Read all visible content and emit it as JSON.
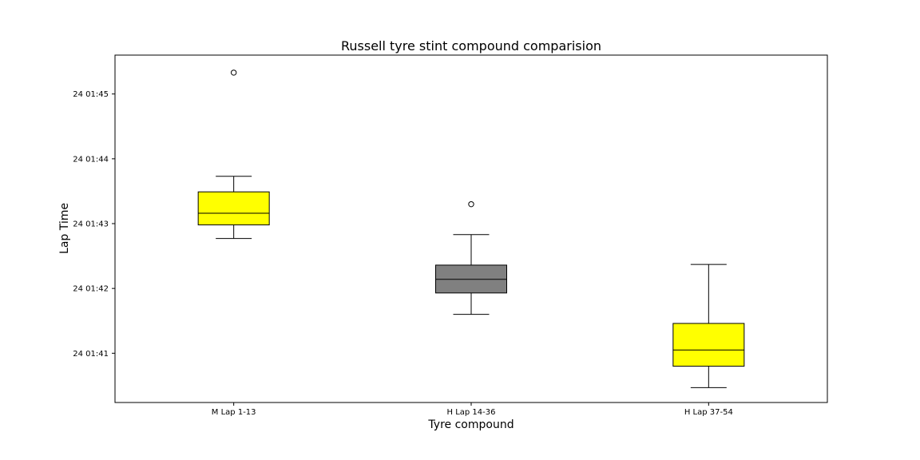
{
  "chart_data": {
    "type": "box",
    "title": "Russell tyre stint compound comparision",
    "xlabel": "Tyre compound",
    "ylabel": "Lap Time",
    "y_unit": "seconds",
    "ylim": [
      100.24,
      105.6
    ],
    "y_ticks": [
      {
        "value": 101,
        "label": "24 01:41"
      },
      {
        "value": 102,
        "label": "24 01:42"
      },
      {
        "value": 103,
        "label": "24 01:43"
      },
      {
        "value": 104,
        "label": "24 01:44"
      },
      {
        "value": 105,
        "label": "24 01:45"
      }
    ],
    "grid": false,
    "categories": [
      "M Lap 1-13",
      "H Lap 14-36",
      "H Lap 37-54"
    ],
    "boxes": [
      {
        "category": "M Lap 1-13",
        "color": "#ffff00",
        "whisker_low": 102.77,
        "q1": 102.98,
        "median": 103.16,
        "q3": 103.49,
        "whisker_high": 103.73,
        "outliers": [
          105.33
        ]
      },
      {
        "category": "H Lap 14-36",
        "color": "#808080",
        "whisker_low": 101.6,
        "q1": 101.93,
        "median": 102.14,
        "q3": 102.36,
        "whisker_high": 102.83,
        "outliers": [
          103.3
        ]
      },
      {
        "category": "H Lap 37-54",
        "color": "#ffff00",
        "whisker_low": 100.47,
        "q1": 100.8,
        "median": 101.05,
        "q3": 101.46,
        "whisker_high": 102.37,
        "outliers": []
      }
    ]
  }
}
